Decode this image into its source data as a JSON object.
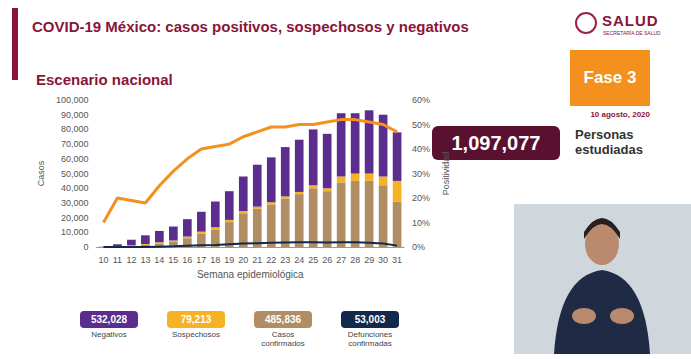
{
  "header": {
    "title": "COVID-19 México: casos positivos, sospechosos y negativos",
    "subtitle": "Escenario nacional",
    "logo": "SALUD",
    "logo_sub": "SECRETARÍA DE SALUD",
    "phase": "Fase 3",
    "date": "10 agosto, 2020",
    "studied_value": 1097077,
    "studied_label": "1,097,077",
    "studied_text": "Personas estudiadas"
  },
  "chart_data": {
    "type": "bar",
    "stacked": true,
    "grid": false,
    "x_label": "Semana epidemiológica",
    "y_label": "Casos",
    "y2_label": "Positividad",
    "categories": [
      "10",
      "11",
      "12",
      "13",
      "14",
      "15",
      "16",
      "17",
      "18",
      "19",
      "20",
      "21",
      "22",
      "23",
      "24",
      "25",
      "26",
      "27",
      "28",
      "29",
      "30",
      "31"
    ],
    "ylim": [
      0,
      100000
    ],
    "yticks": [
      0,
      {
        "value": 10000,
        "label": "10,000"
      },
      {
        "value": 20000,
        "label": "20,000"
      },
      {
        "value": 30000,
        "label": "30,000"
      },
      {
        "value": 40000,
        "label": "40,000"
      },
      {
        "value": 50000,
        "label": "50,000"
      },
      {
        "value": 60000,
        "label": "60,000"
      },
      {
        "value": 70000,
        "label": "70,000"
      },
      {
        "value": 80000,
        "label": "80,000"
      },
      {
        "value": 90000,
        "label": "90,000"
      },
      {
        "value": 100000,
        "label": "100,000"
      }
    ],
    "y2lim": [
      0,
      60
    ],
    "y2ticks": [
      {
        "value": 0,
        "label": "0%"
      },
      {
        "value": 10,
        "label": "10%"
      },
      {
        "value": 20,
        "label": "20%"
      },
      {
        "value": 30,
        "label": "30%"
      },
      {
        "value": 40,
        "label": "40%"
      },
      {
        "value": 50,
        "label": "50%"
      },
      {
        "value": 60,
        "label": "60%"
      }
    ],
    "series": [
      {
        "name": "Negativos",
        "type": "bar",
        "color": "#5b2d8e",
        "total": 532028,
        "total_label": "532,028",
        "values": [
          250,
          1500,
          3800,
          5900,
          7700,
          9500,
          11800,
          13500,
          17500,
          19500,
          23500,
          28500,
          30500,
          33500,
          35500,
          38000,
          37000,
          43000,
          41000,
          43000,
          42000,
          33000
        ]
      },
      {
        "name": "Sospechosos",
        "type": "bar",
        "color": "#f6b224",
        "total": 79213,
        "total_label": "79,213",
        "values": [
          20,
          200,
          400,
          600,
          800,
          1000,
          1200,
          1500,
          1500,
          1500,
          1500,
          1500,
          1500,
          1500,
          1500,
          2000,
          2000,
          4000,
          5000,
          5000,
          6000,
          14000
        ]
      },
      {
        "name": "Casos confirmados",
        "type": "bar",
        "color": "#b08d62",
        "total": 485836,
        "total_label": "485,836",
        "values": [
          30,
          300,
          800,
          1500,
          2500,
          3500,
          6000,
          9000,
          12000,
          17000,
          23000,
          26000,
          29000,
          33000,
          36000,
          40000,
          38000,
          44000,
          45000,
          45000,
          42000,
          31000
        ]
      },
      {
        "name": "Defunciones confirmadas",
        "type": "line",
        "color": "#13294b",
        "total": 53003,
        "total_label": "53,003",
        "values": [
          0,
          0,
          20,
          100,
          300,
          500,
          900,
          1200,
          1500,
          2000,
          2400,
          2700,
          3000,
          3200,
          3300,
          3300,
          3200,
          3300,
          3300,
          3000,
          2500,
          1000
        ]
      },
      {
        "type": "line",
        "axis": "y2",
        "color": "#f4901e",
        "values": [
          10,
          20,
          19,
          18,
          25,
          31,
          36,
          40,
          41,
          42,
          45,
          47,
          49,
          49,
          50,
          50,
          51,
          52,
          52,
          51,
          50,
          47
        ]
      }
    ]
  }
}
